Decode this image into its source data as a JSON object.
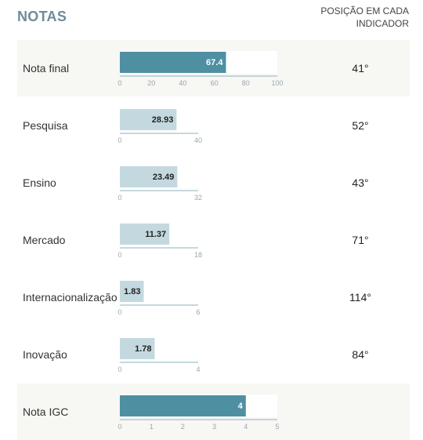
{
  "header": {
    "title": "NOTAS",
    "rank_column": "POSIÇÃO EM CADA INDICADOR"
  },
  "colors": {
    "main_bar": "#4f8fa2",
    "sub_bar": "#c4d9df",
    "axis": "#8eb3be",
    "tick_text": "#9aa8ae",
    "shaded_row": "#f7f7f3"
  },
  "chart_data": {
    "type": "bar",
    "orientation": "horizontal",
    "title": "NOTAS",
    "rows": [
      {
        "label": "Nota final",
        "value": 67.4,
        "value_label": "67.4",
        "max": 100,
        "ticks": [
          0,
          20,
          40,
          60,
          80,
          100
        ],
        "rank": "41°",
        "style": "main",
        "shaded": true,
        "track_background": true
      },
      {
        "label": "Pesquisa",
        "value": 28.93,
        "value_label": "28.93",
        "max": 40,
        "ticks": [
          0,
          40
        ],
        "rank": "52°",
        "style": "sub",
        "shaded": false,
        "track_background": false
      },
      {
        "label": "Ensino",
        "value": 23.49,
        "value_label": "23.49",
        "max": 32,
        "ticks": [
          0,
          32
        ],
        "rank": "43°",
        "style": "sub",
        "shaded": false,
        "track_background": false
      },
      {
        "label": "Mercado",
        "value": 11.37,
        "value_label": "11.37",
        "max": 18,
        "ticks": [
          0,
          18
        ],
        "rank": "71°",
        "style": "sub",
        "shaded": false,
        "track_background": false
      },
      {
        "label": "Internacionalização",
        "value": 1.83,
        "value_label": "1.83",
        "max": 6,
        "ticks": [
          0,
          6
        ],
        "rank": "114°",
        "style": "sub",
        "shaded": false,
        "track_background": false
      },
      {
        "label": "Inovação",
        "value": 1.78,
        "value_label": "1.78",
        "max": 4,
        "ticks": [
          0,
          4
        ],
        "rank": "84°",
        "style": "sub",
        "shaded": false,
        "track_background": false
      },
      {
        "label": "Nota IGC",
        "value": 4,
        "value_label": "4",
        "max": 5,
        "ticks": [
          0,
          1,
          2,
          3,
          4,
          5
        ],
        "rank": "",
        "style": "main",
        "shaded": true,
        "track_background": true
      }
    ]
  }
}
